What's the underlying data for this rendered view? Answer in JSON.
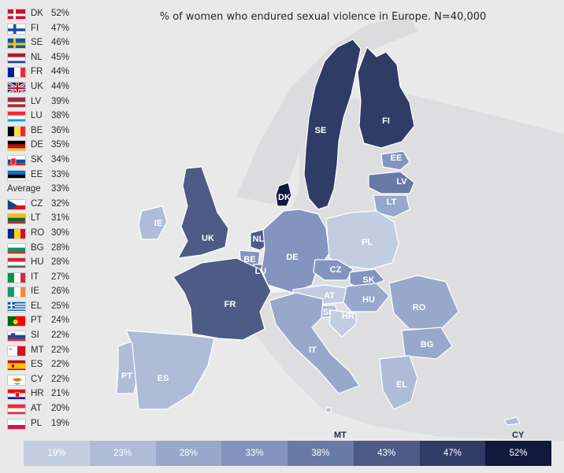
{
  "title": "% of women who endured sexual violence in Europe. N=40,000",
  "sidebar": {
    "rows": [
      {
        "code": "DK",
        "value": "52%",
        "flag": "denmark-flag-icon"
      },
      {
        "code": "FI",
        "value": "47%",
        "flag": "finland-flag-icon"
      },
      {
        "code": "SE",
        "value": "46%",
        "flag": "sweden-flag-icon"
      },
      {
        "code": "NL",
        "value": "45%",
        "flag": "netherlands-flag-icon"
      },
      {
        "code": "FR",
        "value": "44%",
        "flag": "france-flag-icon"
      },
      {
        "code": "UK",
        "value": "44%",
        "flag": "uk-flag-icon"
      },
      {
        "code": "LV",
        "value": "39%",
        "flag": "latvia-flag-icon"
      },
      {
        "code": "LU",
        "value": "38%",
        "flag": "luxembourg-flag-icon"
      },
      {
        "code": "BE",
        "value": "36%",
        "flag": "belgium-flag-icon"
      },
      {
        "code": "DE",
        "value": "35%",
        "flag": "germany-flag-icon"
      },
      {
        "code": "SK",
        "value": "34%",
        "flag": "slovakia-flag-icon"
      },
      {
        "code": "EE",
        "value": "33%",
        "flag": "estonia-flag-icon"
      },
      {
        "average": true,
        "label": "Average",
        "value": "33%"
      },
      {
        "code": "CZ",
        "value": "32%",
        "flag": "czechia-flag-icon"
      },
      {
        "code": "LT",
        "value": "31%",
        "flag": "lithuania-flag-icon"
      },
      {
        "code": "RO",
        "value": "30%",
        "flag": "romania-flag-icon"
      },
      {
        "code": "BG",
        "value": "28%",
        "flag": "bulgaria-flag-icon"
      },
      {
        "code": "HU",
        "value": "28%",
        "flag": "hungary-flag-icon"
      },
      {
        "code": "IT",
        "value": "27%",
        "flag": "italy-flag-icon"
      },
      {
        "code": "IE",
        "value": "26%",
        "flag": "ireland-flag-icon"
      },
      {
        "code": "EL",
        "value": "25%",
        "flag": "greece-flag-icon"
      },
      {
        "code": "PT",
        "value": "24%",
        "flag": "portugal-flag-icon"
      },
      {
        "code": "SI",
        "value": "22%",
        "flag": "slovenia-flag-icon"
      },
      {
        "code": "MT",
        "value": "22%",
        "flag": "malta-flag-icon"
      },
      {
        "code": "ES",
        "value": "22%",
        "flag": "spain-flag-icon"
      },
      {
        "code": "CY",
        "value": "22%",
        "flag": "cyprus-flag-icon"
      },
      {
        "code": "HR",
        "value": "21%",
        "flag": "croatia-flag-icon"
      },
      {
        "code": "AT",
        "value": "20%",
        "flag": "austria-flag-icon"
      },
      {
        "code": "PL",
        "value": "19%",
        "flag": "poland-flag-icon"
      }
    ]
  },
  "map_labels": [
    "SE",
    "FI",
    "EE",
    "LV",
    "LT",
    "DK",
    "IE",
    "UK",
    "NL",
    "BE",
    "LU",
    "DE",
    "PL",
    "CZ",
    "SK",
    "FR",
    "AT",
    "HU",
    "RO",
    "SI",
    "HR",
    "IT",
    "BG",
    "PT",
    "ES",
    "EL",
    "MT",
    "CY"
  ],
  "legend": {
    "steps": [
      "19%",
      "23%",
      "28%",
      "33%",
      "38%",
      "43%",
      "47%",
      "52%"
    ],
    "colors": [
      "#c3cde2",
      "#aebcd8",
      "#97a8cb",
      "#8395bf",
      "#687aa6",
      "#4d5b86",
      "#2f3c66",
      "#101a3d"
    ],
    "extra_labels": [
      "MT",
      "CY"
    ]
  },
  "colors": {
    "background": "#e9e9ea",
    "land_other": "#dadadb",
    "border": "#ffffff"
  }
}
